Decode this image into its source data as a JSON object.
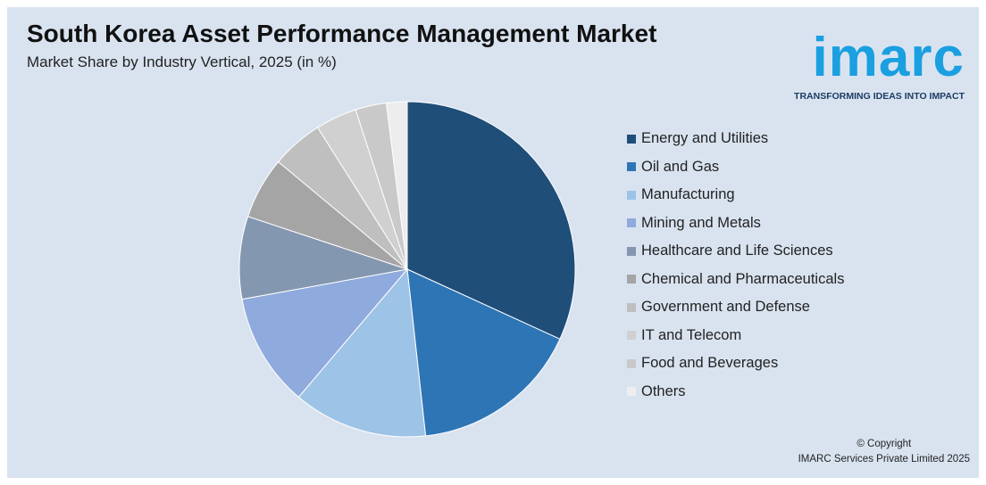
{
  "header": {
    "title": "South Korea Asset Performance Management Market",
    "subtitle": "Market Share by Industry Vertical, 2025 (in %)"
  },
  "logo": {
    "text": "imarc",
    "tagline": "TRANSFORMING IDEAS INTO IMPACT",
    "color": "#1a9fe0"
  },
  "footer": {
    "copyright_line1": "© Copyright",
    "copyright_line2": "IMARC Services Private Limited 2025"
  },
  "chart_data": {
    "type": "pie",
    "title": "South Korea Asset Performance Management Market",
    "subtitle": "Market Share by Industry Vertical, 2025 (in %)",
    "unit": "%",
    "legend_position": "right",
    "start_angle": "12 o'clock, clockwise",
    "slices": [
      {
        "label": "Energy and Utilities",
        "value": 32,
        "color": "#1f4e79"
      },
      {
        "label": "Oil and Gas",
        "value": 16.5,
        "color": "#2e75b6"
      },
      {
        "label": "Manufacturing",
        "value": 13,
        "color": "#9dc3e6"
      },
      {
        "label": "Mining and Metals",
        "value": 11,
        "color": "#8faadc"
      },
      {
        "label": "Healthcare and Life Sciences",
        "value": 8,
        "color": "#8497b0"
      },
      {
        "label": "Chemical and Pharmaceuticals",
        "value": 6,
        "color": "#a5a5a5"
      },
      {
        "label": "Government and Defense",
        "value": 5,
        "color": "#bfbfbf"
      },
      {
        "label": "IT and Telecom",
        "value": 4,
        "color": "#d0d0d0"
      },
      {
        "label": "Food and Beverages",
        "value": 3,
        "color": "#c9c9c9"
      },
      {
        "label": "Others",
        "value": 2,
        "color": "#ededed"
      }
    ]
  }
}
